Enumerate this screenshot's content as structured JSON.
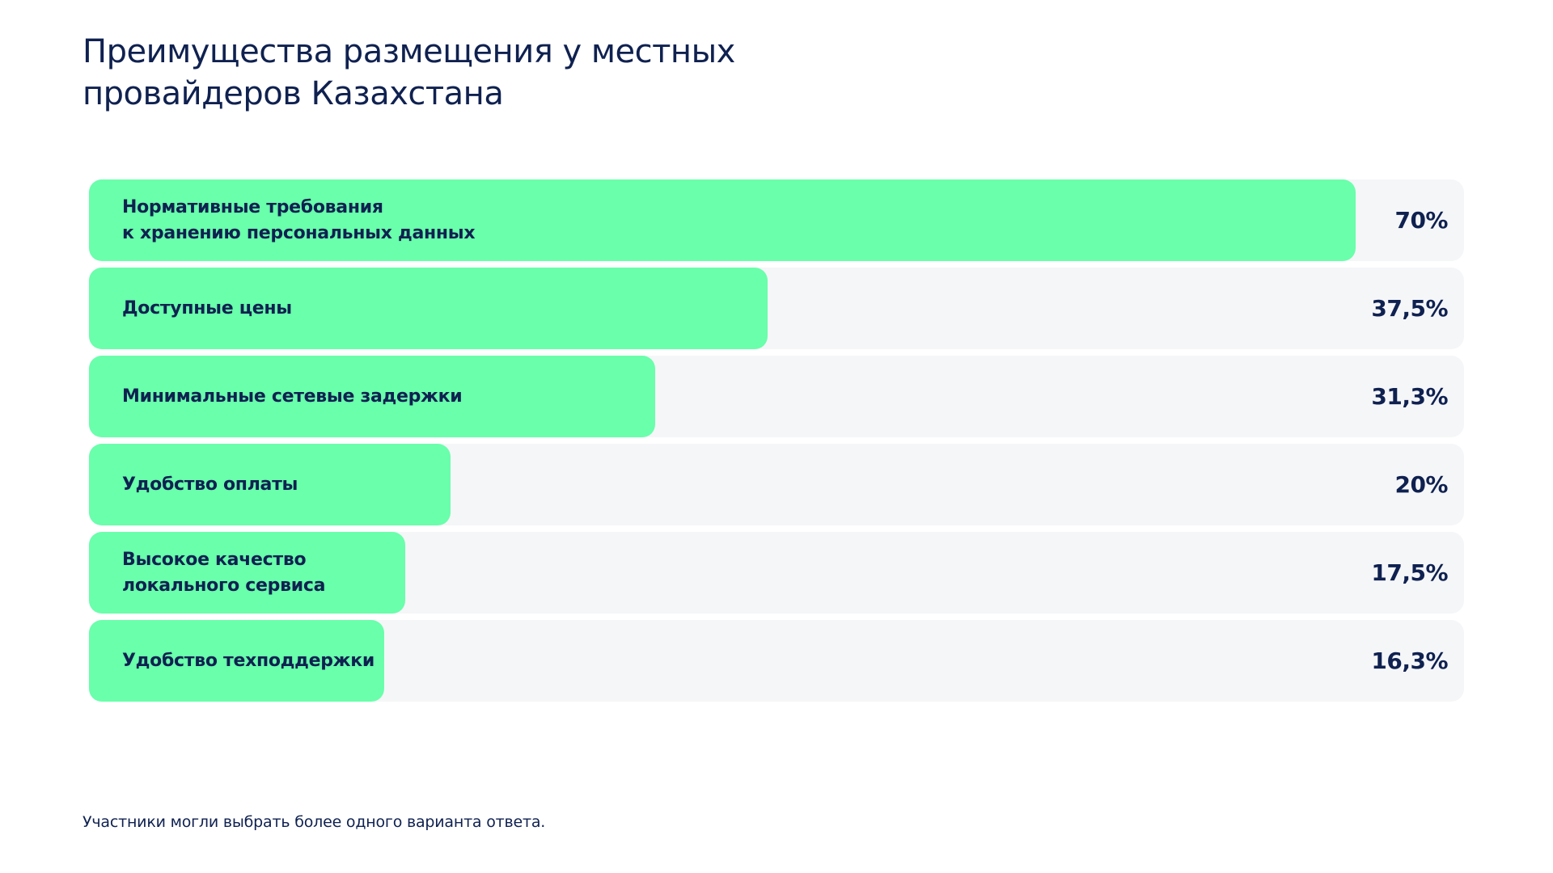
{
  "title": "Преимущества размещения у местных\nпровайдеров Казахстана",
  "footnote": "Участники могли выбрать более одного варианта ответа.",
  "colors": {
    "bar": "#69ffab",
    "track": "#f5f6f8",
    "text": "#0f2150"
  },
  "chart_data": {
    "type": "bar",
    "orientation": "horizontal",
    "title": "Преимущества размещения у местных провайдеров Казахстана",
    "xlim": [
      0,
      76
    ],
    "grid": false,
    "categories": [
      "Нормативные требования\nк хранению персональных данных",
      "Доступные цены",
      "Минимальные сетевые задержки",
      "Удобство оплаты",
      "Высокое качество\nлокального сервиса",
      "Удобство техподдержки"
    ],
    "values": [
      70,
      37.5,
      31.3,
      20,
      17.5,
      16.3
    ],
    "value_labels": [
      "70%",
      "37,5%",
      "31,3%",
      "20%",
      "17,5%",
      "16,3%"
    ]
  }
}
